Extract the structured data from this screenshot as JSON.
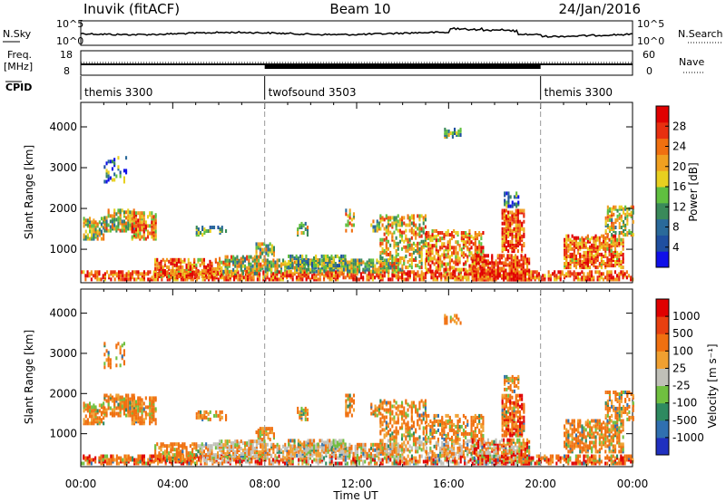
{
  "header": {
    "station": "Inuvik (fitACF)",
    "beam": "Beam 10",
    "date": "24/Jan/2016"
  },
  "strip_labels": {
    "nsky": "N.Sky",
    "nsearch": "N.Search",
    "freq": "Freq.",
    "freq_unit": "[MHz]",
    "nave": "Nave",
    "cpid": "CPID",
    "left_ticks": [
      "10^5",
      "10^0",
      "18",
      "8"
    ],
    "right_ticks": [
      "10^5",
      "10^0",
      "60",
      "0"
    ]
  },
  "cpid_segments": [
    {
      "label": "themis 3300",
      "start_hour": 0,
      "end_hour": 8
    },
    {
      "label": "twofsound 3503",
      "start_hour": 8,
      "end_hour": 20
    },
    {
      "label": "themis 3300",
      "start_hour": 20,
      "end_hour": 24
    }
  ],
  "colors": {
    "power": [
      "#1010e8",
      "#1f4fa0",
      "#2a6a9a",
      "#3a8a5a",
      "#60c040",
      "#e8d020",
      "#f0a020",
      "#f07010",
      "#e83010",
      "#e00000"
    ],
    "velocity": [
      "#2030c0",
      "#3070b0",
      "#2e8a60",
      "#70c040",
      "#c0c0b8",
      "#f0a030",
      "#f07010",
      "#e84010",
      "#e00000"
    ]
  },
  "chart_data": [
    {
      "type": "heatmap",
      "name": "power",
      "ylabel": "Slant Range [km]",
      "ylim": [
        180,
        4600
      ],
      "y_ticks": [
        "1000",
        "2000",
        "3000",
        "4000"
      ],
      "y_tick_values": [
        1000,
        2000,
        3000,
        4000
      ],
      "xlim": [
        0,
        24
      ],
      "colorbar_label": "Power [dB]",
      "colorbar_ticks": [
        "4",
        "8",
        "12",
        "16",
        "20",
        "24",
        "28"
      ],
      "colorbar_range": [
        0,
        32
      ],
      "dashed_lines_hours": [
        8,
        20
      ]
    },
    {
      "type": "heatmap",
      "name": "velocity",
      "ylabel": "Slant Range [km]",
      "ylim": [
        180,
        4600
      ],
      "y_ticks": [
        "1000",
        "2000",
        "3000",
        "4000"
      ],
      "y_tick_values": [
        1000,
        2000,
        3000,
        4000
      ],
      "xlim": [
        0,
        24
      ],
      "xlabel": "Time UT",
      "x_ticks": [
        "00:00",
        "04:00",
        "08:00",
        "12:00",
        "16:00",
        "20:00",
        "00:00"
      ],
      "x_tick_hours": [
        0,
        4,
        8,
        12,
        16,
        20,
        24
      ],
      "colorbar_label": "Velocity [m s⁻¹]",
      "colorbar_ticks": [
        "1000",
        "500",
        "100",
        "25",
        "-25",
        "-100",
        "-500",
        "-1000"
      ],
      "dashed_lines_hours": [
        8,
        20
      ]
    }
  ]
}
